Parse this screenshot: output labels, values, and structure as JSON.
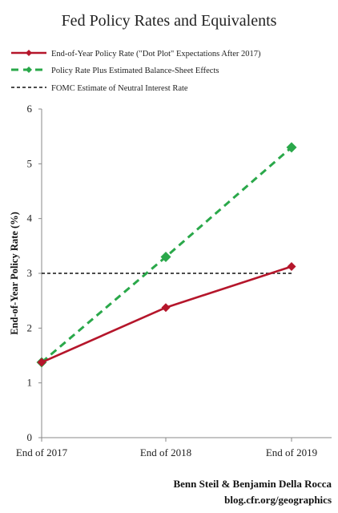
{
  "chart_data": {
    "type": "line",
    "title": "Fed Policy Rates and Equivalents",
    "xlabel": "",
    "ylabel": "End-of-Year Policy Rate (%)",
    "categories": [
      "End of 2017",
      "End of 2018",
      "End of 2019"
    ],
    "ylim": [
      0,
      6
    ],
    "yticks": [
      "0",
      "1",
      "2",
      "3",
      "4",
      "5",
      "6"
    ],
    "grid": false,
    "legend_position": "top",
    "series": [
      {
        "name": "End-of-Year Policy Rate (\"Dot Plot\" Expectations After 2017)",
        "values": [
          1.375,
          2.375,
          3.125
        ],
        "color": "#b5162b",
        "style": "solid",
        "marker": "diamond"
      },
      {
        "name": "Policy Rate Plus Estimated Balance-Sheet Effects",
        "values": [
          1.375,
          3.3,
          5.3
        ],
        "color": "#2aa84a",
        "style": "dashed",
        "marker": "diamond"
      },
      {
        "name": "FOMC Estimate of Neutral Interest Rate",
        "values": [
          3.0,
          3.0,
          3.0
        ],
        "color": "#111111",
        "style": "dotted",
        "marker": "none"
      }
    ]
  },
  "credit": {
    "authors": "Benn Steil & Benjamin Della Rocca",
    "url": "blog.cfr.org/geographics"
  }
}
